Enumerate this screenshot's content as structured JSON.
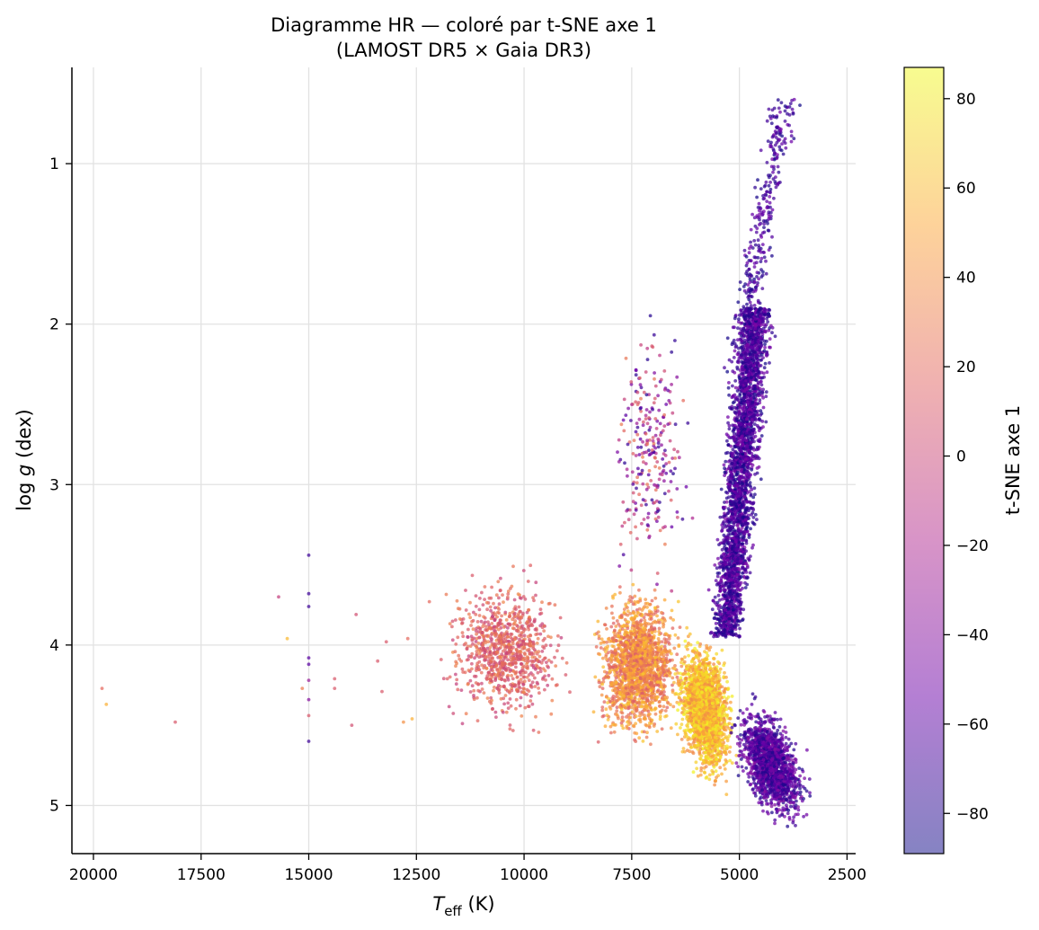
{
  "chart_data": {
    "type": "scatter",
    "title": "Diagramme HR — coloré par t-SNE axe 1",
    "subtitle": "(LAMOST DR5 × Gaia DR3)",
    "xlabel": {
      "main": "T",
      "sub": "eff",
      "unit": " (K)"
    },
    "ylabel": {
      "pre": "log ",
      "var": "g",
      "post": " (dex)"
    },
    "xlim": [
      20500,
      2300
    ],
    "ylim": [
      5.3,
      0.4
    ],
    "x_inverted": true,
    "y_inverted": true,
    "xticks": [
      20000,
      17500,
      15000,
      12500,
      10000,
      7500,
      5000,
      2500
    ],
    "yticks": [
      1,
      2,
      3,
      4,
      5
    ],
    "grid": true,
    "colorbar": {
      "label": "t-SNE axe 1",
      "range": [
        -89,
        87
      ],
      "ticks": [
        80,
        60,
        40,
        20,
        0,
        -20,
        -40,
        -60,
        -80
      ],
      "colormap": "plasma",
      "colors": [
        "#0d0887",
        "#6a00a8",
        "#b12a90",
        "#e16462",
        "#fca636",
        "#f0f921"
      ],
      "alpha": 0.5
    },
    "series": [
      {
        "region": "isolated-hot",
        "points": [
          [
            19800,
            4.27,
            20
          ],
          [
            19700,
            4.37,
            55
          ],
          [
            18100,
            4.48,
            10
          ],
          [
            15700,
            3.7,
            -5
          ],
          [
            15500,
            3.96,
            60
          ],
          [
            15150,
            4.27,
            30
          ],
          [
            15000,
            3.44,
            -70
          ],
          [
            15000,
            3.68,
            -70
          ],
          [
            15000,
            3.76,
            -70
          ],
          [
            15000,
            4.08,
            -60
          ],
          [
            15000,
            4.12,
            -60
          ],
          [
            15000,
            4.22,
            -30
          ],
          [
            15000,
            4.34,
            -40
          ],
          [
            15000,
            4.44,
            10
          ],
          [
            15000,
            4.6,
            -70
          ],
          [
            14400,
            4.21,
            10
          ],
          [
            14400,
            4.27,
            10
          ],
          [
            14000,
            4.5,
            5
          ],
          [
            13900,
            3.81,
            5
          ],
          [
            13400,
            4.1,
            10
          ],
          [
            13300,
            4.29,
            10
          ],
          [
            13200,
            3.98,
            10
          ],
          [
            12800,
            4.48,
            40
          ],
          [
            12700,
            3.96,
            20
          ],
          [
            12600,
            4.46,
            55
          ],
          [
            12200,
            3.73,
            20
          ]
        ]
      },
      {
        "region": "hot-main-sequence",
        "gen": {
          "n": 900,
          "x": [
            8600,
            12300
          ],
          "y": [
            3.45,
            4.62
          ],
          "cmin": -5,
          "cmax": 35
        }
      },
      {
        "region": "warm-main-sequence",
        "gen": {
          "n": 1800,
          "x": [
            6100,
            8600
          ],
          "y": [
            3.55,
            4.72
          ],
          "cmin": 10,
          "cmax": 65
        }
      },
      {
        "region": "solar-main-sequence",
        "gen": {
          "n": 2200,
          "x": [
            5000,
            6600
          ],
          "y": [
            3.85,
            4.95
          ],
          "cmin": 35,
          "cmax": 85
        }
      },
      {
        "region": "cool-dwarfs",
        "gen": {
          "n": 1500,
          "x": [
            3250,
            5300
          ],
          "y": [
            4.15,
            5.05
          ],
          "cmin": -85,
          "cmax": -40
        }
      },
      {
        "region": "red-giant-branch",
        "gen": {
          "n": 2800,
          "x": [
            4200,
            6100
          ],
          "y": [
            1.9,
            3.95
          ],
          "cmin": -88,
          "cmax": -45
        }
      },
      {
        "region": "upper-giants",
        "gen": {
          "n": 350,
          "x": [
            3600,
            6500
          ],
          "y": [
            0.6,
            2.3
          ],
          "cmin": -88,
          "cmax": -50
        }
      },
      {
        "region": "subgiants-scatter",
        "gen": {
          "n": 260,
          "x": [
            6000,
            8200
          ],
          "y": [
            1.75,
            3.9
          ],
          "cmin": -80,
          "cmax": 30
        }
      }
    ]
  }
}
